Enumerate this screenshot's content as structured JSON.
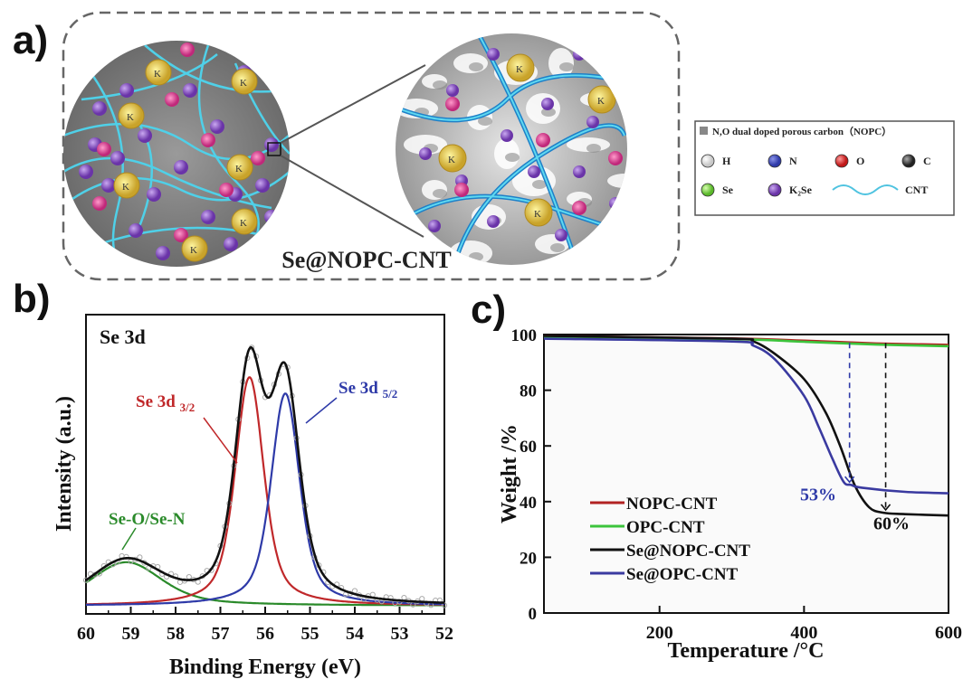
{
  "panels": {
    "a": "a)",
    "b": "b)",
    "c": "c)"
  },
  "schematic": {
    "label": "Se@NOPC-CNT",
    "ion_label": "K",
    "legend": {
      "title": "N,O dual doped porous carbon（NOPC）",
      "items": [
        {
          "label": "H",
          "color": "#c8c8c8"
        },
        {
          "label": "N",
          "color": "#2e3aa8"
        },
        {
          "label": "O",
          "color": "#d42a2a"
        },
        {
          "label": "C",
          "color": "#444444"
        },
        {
          "label": "Se",
          "color": "#7ed13a"
        },
        {
          "label": "K₂Se",
          "color": "#8a4fc4"
        },
        {
          "label": "CNT",
          "color": "#4fc3e0"
        }
      ]
    }
  },
  "chart_data": [
    {
      "type": "line",
      "title": "Se 3d",
      "xlabel": "Binding Energy (eV)",
      "ylabel": "Intensity (a.u.)",
      "xlim": [
        60,
        52
      ],
      "ylim": [
        0,
        1.1
      ],
      "x_reversed": true,
      "xticks": [
        60,
        59,
        58,
        57,
        56,
        55,
        54,
        53,
        52
      ],
      "annotations": [
        {
          "text": "Se-O/Se-N",
          "color": "#2a8a2a"
        },
        {
          "text": "Se 3d",
          "sub": "3/2",
          "color": "#c0282a"
        },
        {
          "text": "Se 3d",
          "sub": "5/2",
          "color": "#2e3aa8"
        }
      ],
      "peaks": [
        {
          "name": "Se-O/Se-N",
          "center": 59.1,
          "amplitude": 0.16,
          "sigma": 0.75,
          "color": "#2a8a2a"
        },
        {
          "name": "Se 3d 3/2",
          "center": 56.35,
          "amplitude": 0.84,
          "sigma": 0.3,
          "color": "#c0282a"
        },
        {
          "name": "Se 3d 5/2",
          "center": 55.55,
          "amplitude": 0.78,
          "sigma": 0.3,
          "color": "#2e3aa8"
        }
      ],
      "envelope_color": "#111111"
    },
    {
      "type": "line",
      "xlabel": "Temperature /°C",
      "ylabel": "Weight /%",
      "xlim": [
        40,
        600
      ],
      "ylim": [
        0,
        100
      ],
      "xticks": [
        200,
        400,
        600
      ],
      "yticks": [
        0,
        20,
        40,
        60,
        80,
        100
      ],
      "legend_position": "bottom-left",
      "series": [
        {
          "name": "NOPC-CNT",
          "color": "#b22222",
          "x": [
            40,
            300,
            400,
            500,
            600
          ],
          "y": [
            99.5,
            98.6,
            97.8,
            96.8,
            96.3
          ]
        },
        {
          "name": "OPC-CNT",
          "color": "#3cc43c",
          "x": [
            40,
            300,
            400,
            500,
            600
          ],
          "y": [
            99.3,
            98.4,
            97.4,
            96.4,
            95.8
          ]
        },
        {
          "name": "Se@NOPC-CNT",
          "color": "#111111",
          "x": [
            40,
            300,
            330,
            360,
            400,
            430,
            450,
            470,
            490,
            510,
            540,
            600
          ],
          "y": [
            99.5,
            98.5,
            97.5,
            93,
            84,
            72,
            60,
            46,
            38,
            36,
            35.5,
            35
          ]
        },
        {
          "name": "Se@OPC-CNT",
          "color": "#3a3aa0",
          "x": [
            40,
            300,
            330,
            360,
            400,
            420,
            440,
            455,
            465,
            480,
            540,
            600
          ],
          "y": [
            98.5,
            97.5,
            96,
            91,
            78,
            67,
            55,
            47,
            46,
            45,
            43.5,
            43
          ]
        }
      ],
      "annotations": [
        {
          "text": "53%",
          "x": 463,
          "color": "#2e3aa8"
        },
        {
          "text": "60%",
          "x": 513,
          "color": "#111111"
        }
      ]
    }
  ]
}
